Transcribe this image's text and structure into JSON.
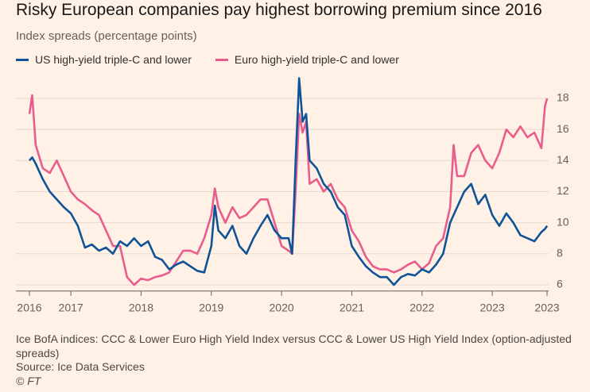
{
  "chart_data": {
    "type": "line",
    "title": "Risky European companies pay highest borrowing premium since 2016",
    "subtitle": "Index spreads (percentage points)",
    "note": "Ice BofA indices: CCC & Lower Euro High Yield Index versus CCC & Lower US High Yield Index (option-adjusted spreads)",
    "source": "Source: Ice Data Services",
    "credit": "© FT",
    "x": [
      2016.41,
      2016.45,
      2016.5,
      2016.6,
      2016.7,
      2016.8,
      2016.9,
      2017.0,
      2017.1,
      2017.2,
      2017.3,
      2017.4,
      2017.5,
      2017.6,
      2017.7,
      2017.8,
      2017.9,
      2018.0,
      2018.1,
      2018.2,
      2018.3,
      2018.4,
      2018.5,
      2018.6,
      2018.7,
      2018.8,
      2018.9,
      2019.0,
      2019.05,
      2019.1,
      2019.2,
      2019.3,
      2019.4,
      2019.5,
      2019.6,
      2019.7,
      2019.8,
      2019.9,
      2020.0,
      2020.1,
      2020.15,
      2020.2,
      2020.25,
      2020.3,
      2020.35,
      2020.4,
      2020.5,
      2020.6,
      2020.7,
      2020.8,
      2020.9,
      2021.0,
      2021.1,
      2021.2,
      2021.3,
      2021.4,
      2021.5,
      2021.6,
      2021.7,
      2021.8,
      2021.9,
      2022.0,
      2022.1,
      2022.2,
      2022.3,
      2022.4,
      2022.45,
      2022.5,
      2022.6,
      2022.7,
      2022.8,
      2022.9,
      2023.0,
      2023.1,
      2023.2,
      2023.3,
      2023.4,
      2023.5,
      2023.6,
      2023.7,
      2023.75,
      2023.78
    ],
    "series": [
      {
        "name": "US high-yield triple-C and lower",
        "color": "#0f5499",
        "values": [
          14.0,
          14.2,
          13.8,
          12.8,
          12.0,
          11.5,
          11.0,
          10.6,
          9.8,
          8.4,
          8.6,
          8.2,
          8.4,
          8.0,
          8.8,
          8.5,
          9.0,
          8.5,
          8.8,
          7.8,
          7.6,
          7.0,
          7.3,
          7.5,
          7.2,
          6.9,
          6.8,
          8.5,
          11.1,
          9.5,
          9.0,
          9.8,
          8.5,
          8.0,
          9.0,
          9.8,
          10.5,
          9.5,
          9.0,
          9.0,
          8.0,
          14.0,
          19.3,
          16.5,
          17.0,
          14.0,
          13.5,
          12.5,
          12.0,
          11.0,
          10.5,
          8.5,
          7.8,
          7.2,
          6.8,
          6.5,
          6.5,
          6.0,
          6.5,
          6.7,
          6.6,
          7.0,
          6.8,
          7.3,
          8.0,
          10.0,
          10.5,
          11.0,
          12.0,
          12.5,
          11.2,
          11.8,
          10.5,
          9.8,
          10.6,
          10.0,
          9.2,
          9.0,
          8.8,
          9.4,
          9.6,
          9.8
        ]
      },
      {
        "name": "Euro high-yield triple-C and lower",
        "color": "#e95d8c",
        "values": [
          17.0,
          18.2,
          15.0,
          13.5,
          13.2,
          14.0,
          13.0,
          12.0,
          11.5,
          11.2,
          10.8,
          10.5,
          9.5,
          8.5,
          8.5,
          6.5,
          6.0,
          6.4,
          6.3,
          6.5,
          6.6,
          6.8,
          7.5,
          8.2,
          8.2,
          8.0,
          9.0,
          10.5,
          12.2,
          11.0,
          10.0,
          11.0,
          10.3,
          10.5,
          11.0,
          11.5,
          11.5,
          10.0,
          8.5,
          8.2,
          8.0,
          12.0,
          17.0,
          15.8,
          16.5,
          12.5,
          12.8,
          12.0,
          12.5,
          11.5,
          11.0,
          9.5,
          8.8,
          7.8,
          7.2,
          7.0,
          7.0,
          6.8,
          7.0,
          7.3,
          7.5,
          7.0,
          7.4,
          8.5,
          9.0,
          11.0,
          15.0,
          13.0,
          13.0,
          14.5,
          15.0,
          14.0,
          13.5,
          14.5,
          16.0,
          15.5,
          16.2,
          15.5,
          15.8,
          14.8,
          17.5,
          18.0
        ]
      }
    ],
    "xlim": [
      2016.41,
      2023.78
    ],
    "xticks": [
      {
        "value": 2016.41,
        "label": "2016"
      },
      2017,
      2018,
      2019,
      2020,
      2021,
      2022,
      2023,
      {
        "value": 2023.78,
        "label": "2023"
      }
    ],
    "ylim": [
      5.6,
      19.6
    ],
    "yticks": [
      6,
      8,
      10,
      12,
      14,
      16,
      18
    ],
    "grid": true
  }
}
